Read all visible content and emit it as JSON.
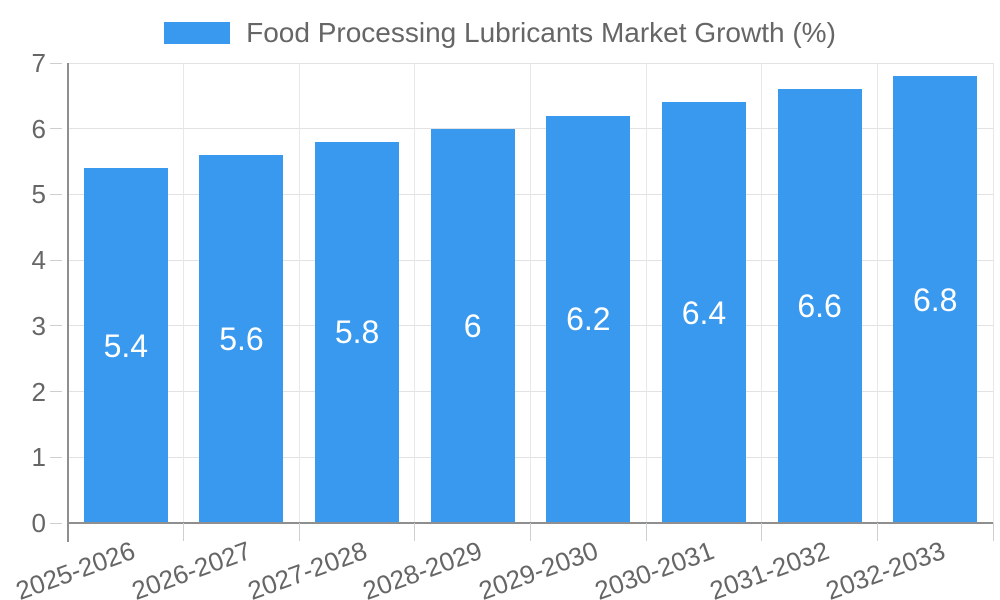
{
  "chart_data": {
    "type": "bar",
    "title": "Food Processing Lubricants Market Growth (%)",
    "series_name": "Food Processing Lubricants Market Growth (%)",
    "categories": [
      "2025-2026",
      "2026-2027",
      "2027-2028",
      "2028-2029",
      "2029-2030",
      "2030-2031",
      "2031-2032",
      "2032-2033"
    ],
    "values": [
      5.4,
      5.6,
      5.8,
      6,
      6.2,
      6.4,
      6.6,
      6.8
    ],
    "value_labels": [
      "5.4",
      "5.6",
      "5.8",
      "6",
      "6.2",
      "6.4",
      "6.6",
      "6.8"
    ],
    "xlabel": "",
    "ylabel": "",
    "ylim": [
      0,
      7
    ],
    "yticks": [
      0,
      1,
      2,
      3,
      4,
      5,
      6,
      7
    ],
    "ytick_labels": [
      "0",
      "1",
      "2",
      "3",
      "4",
      "5",
      "6",
      "7"
    ],
    "grid": true,
    "legend_position": "top",
    "colors": {
      "bar": "#3899EE",
      "value_label_text": "#FFFFFF",
      "axis_line": "#8F8F8F",
      "h_grid_line": "#E2E2E2",
      "v_grid_line": "#E8E8E8",
      "tick_mark": "#CFCFCF",
      "tick_text": "#666666",
      "legend_text": "#666666",
      "background": "#FFFFFF"
    }
  }
}
